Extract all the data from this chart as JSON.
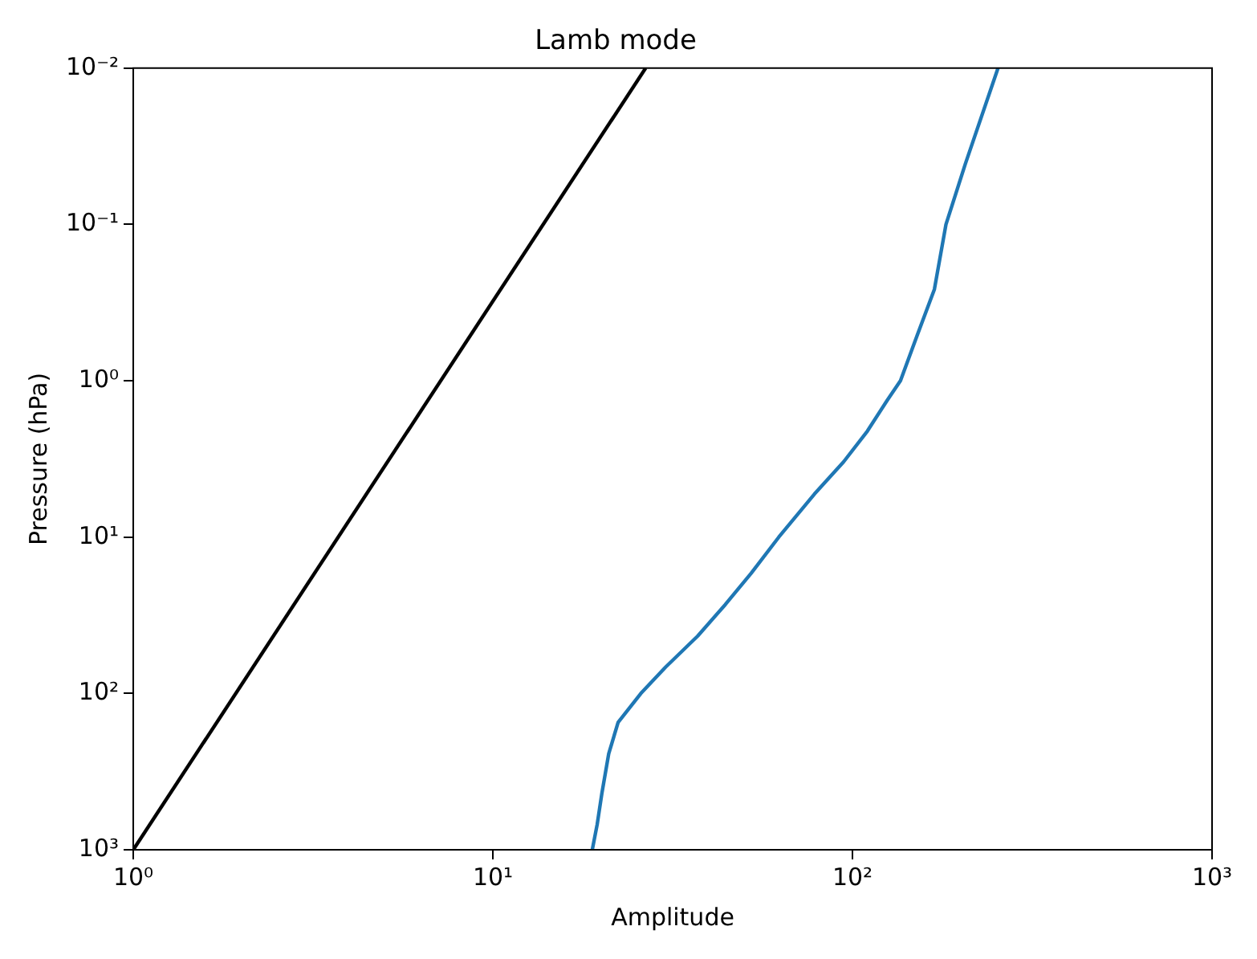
{
  "chart_data": {
    "type": "line",
    "title": "Lamb mode",
    "xlabel": "Amplitude",
    "ylabel": "Pressure (hPa)",
    "log": "xy",
    "grid": false,
    "legend": false,
    "marker": "none",
    "line_style": "solid",
    "xlim": [
      1,
      1000
    ],
    "ylim": [
      1000,
      0.01
    ],
    "xticks": [
      {
        "value": 1,
        "label": "10⁰"
      },
      {
        "value": 10,
        "label": "10¹"
      },
      {
        "value": 100,
        "label": "10²"
      },
      {
        "value": 1000,
        "label": "10³"
      }
    ],
    "yticks": [
      {
        "value": 1000,
        "label": "10³"
      },
      {
        "value": 100,
        "label": "10²"
      },
      {
        "value": 10,
        "label": "10¹"
      },
      {
        "value": 1,
        "label": "10⁰"
      },
      {
        "value": 0.1,
        "label": "10⁻¹"
      },
      {
        "value": 0.01,
        "label": "10⁻²"
      }
    ],
    "series": [
      {
        "color": "#000000",
        "x": [
          1,
          26.6
        ],
        "values": [
          1000,
          0.01
        ]
      },
      {
        "color": "#1f77b4",
        "x": [
          18.9,
          19.5,
          20.1,
          21.0,
          22.3,
          25.8,
          30.2,
          37.1,
          44.3,
          52.3,
          62.4,
          78.4,
          94.5,
          110,
          125,
          136,
          151,
          169,
          182,
          206,
          254
        ],
        "values": [
          1000,
          690,
          435,
          243,
          153,
          100,
          68,
          43,
          27,
          17,
          10,
          5.3,
          3.3,
          2.1,
          1.33,
          1,
          0.52,
          0.26,
          0.1,
          0.041,
          0.01
        ]
      }
    ]
  }
}
